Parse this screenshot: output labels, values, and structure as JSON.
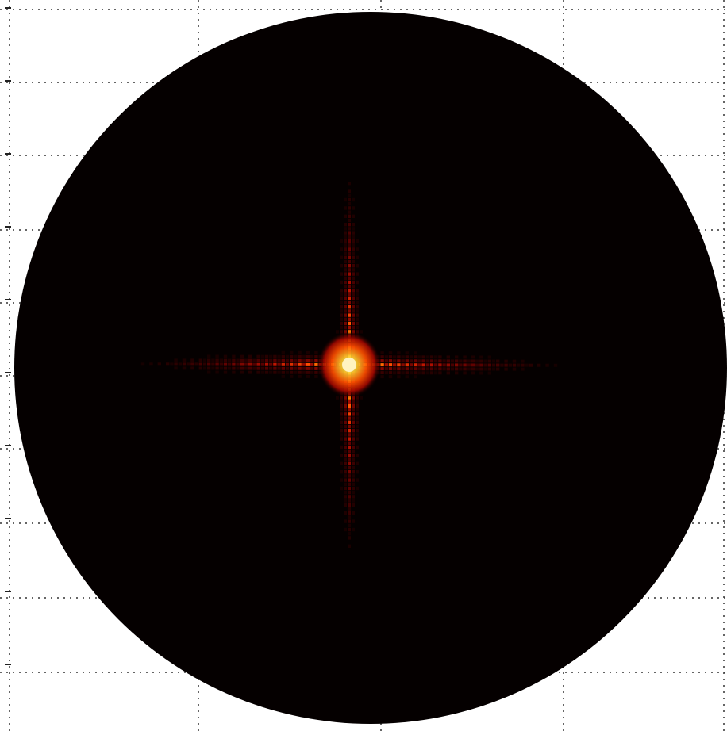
{
  "figure": {
    "background_color": "#ffffff",
    "disk_color": "#050000",
    "grid_color": "#333333",
    "grid": true,
    "grid_style": "dotted",
    "colormap": "hot",
    "colormap_stops": [
      "#050000",
      "#5a0000",
      "#b81000",
      "#ff4a00",
      "#ffb000",
      "#fff4c0"
    ],
    "description_shape": "circular aperture",
    "pattern": {
      "type": "cross-shaped diffraction pattern",
      "peak_intensity": 1.0,
      "horizontal_arm_decay": 0.55,
      "vertical_arm_decay": 0.45,
      "fringe_count_horizontal": 34,
      "fringe_count_vertical": 30
    }
  }
}
